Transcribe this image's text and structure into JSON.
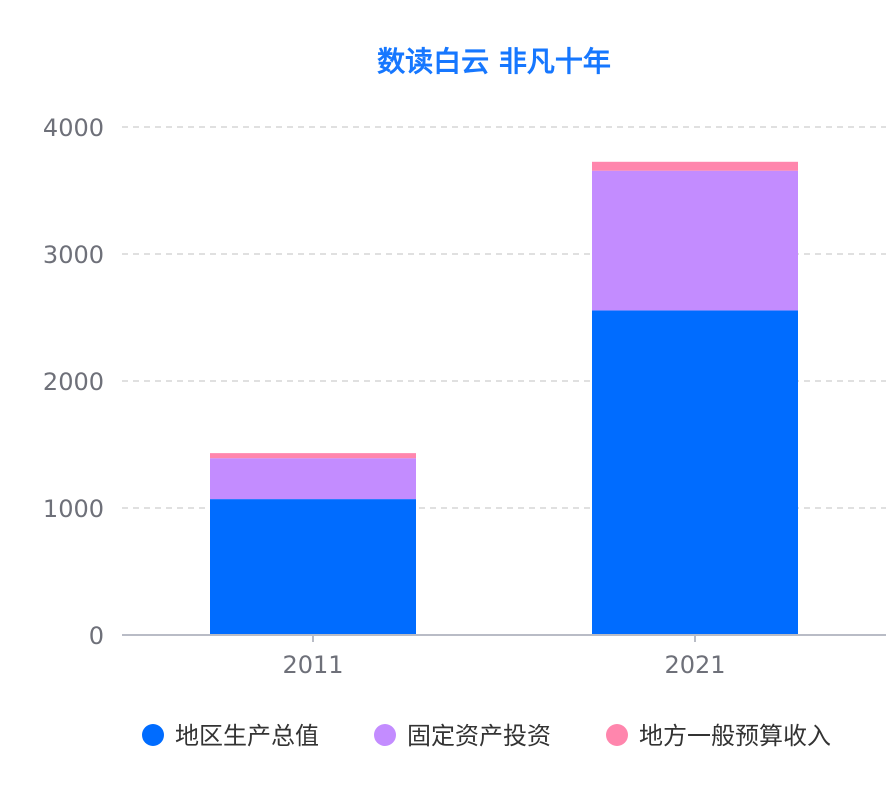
{
  "chart_data": {
    "type": "bar",
    "stacked": true,
    "title": "数读白云 非凡十年",
    "categories": [
      "2011",
      "2021"
    ],
    "series": [
      {
        "name": "地区生产总值",
        "values": [
          1070,
          2556
        ],
        "color": "#006cff"
      },
      {
        "name": "固定资产投资",
        "values": [
          322,
          1100
        ],
        "color": "#c38cff"
      },
      {
        "name": "地方一般预算收入",
        "values": [
          40,
          70
        ],
        "color": "#ff86ad"
      }
    ],
    "yticks": [
      "0",
      "1000",
      "2000",
      "3000",
      "4000"
    ],
    "ylim": [
      0,
      4000
    ],
    "grid": true,
    "legend_position": "bottom",
    "colors": {
      "title": "#1677ff",
      "axis": "#b9bcc6",
      "grid": "#d6d6d6",
      "tick": "#6e7079"
    }
  }
}
